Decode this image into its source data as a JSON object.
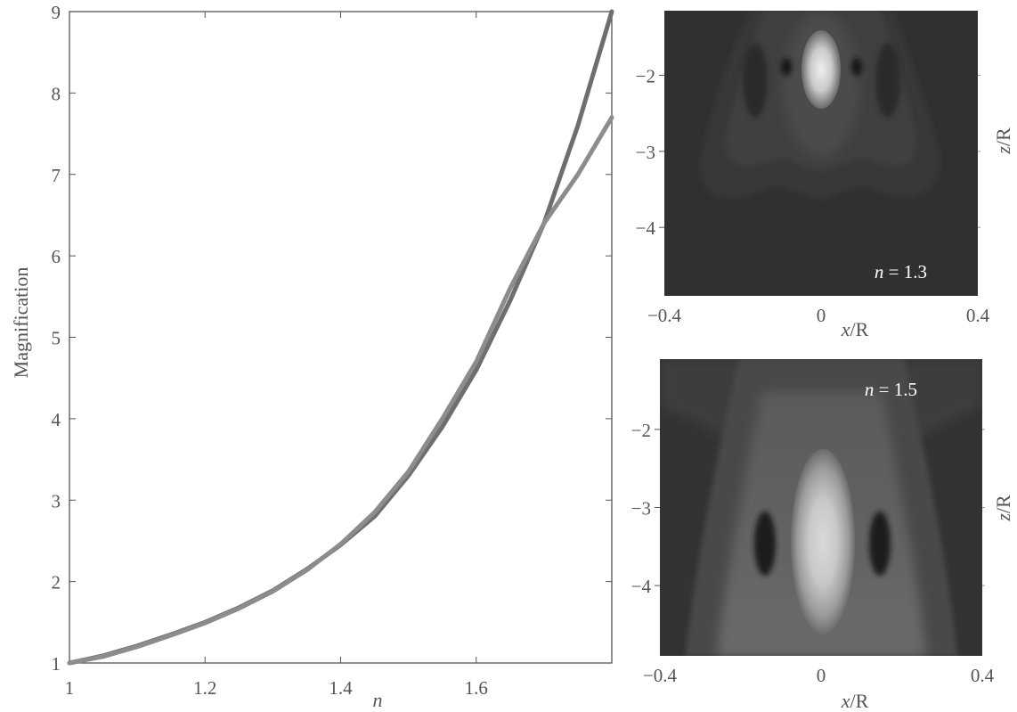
{
  "chart_data": [
    {
      "type": "line",
      "xlabel": "n",
      "ylabel": "Magnification",
      "xlim": [
        1,
        1.8
      ],
      "ylim": [
        1,
        9
      ],
      "x_ticks": [
        1,
        1.2,
        1.4,
        1.6
      ],
      "x_tick_labels": [
        "1",
        "1.2",
        "1.4",
        "1.6"
      ],
      "y_ticks": [
        1,
        2,
        3,
        4,
        5,
        6,
        7,
        8,
        9
      ],
      "y_tick_labels": [
        "1",
        "2",
        "3",
        "4",
        "5",
        "6",
        "7",
        "8",
        "9"
      ],
      "grid": false,
      "series": [
        {
          "color": "#6e6e6e",
          "x": [
            1.0,
            1.05,
            1.1,
            1.15,
            1.2,
            1.25,
            1.3,
            1.35,
            1.4,
            1.45,
            1.5,
            1.55,
            1.6,
            1.65,
            1.7,
            1.75,
            1.8
          ],
          "y": [
            1.0,
            1.09,
            1.21,
            1.35,
            1.5,
            1.68,
            1.89,
            2.15,
            2.45,
            2.8,
            3.3,
            3.9,
            4.6,
            5.45,
            6.4,
            7.6,
            9.0
          ]
        },
        {
          "color": "#8c8c8c",
          "x": [
            1.0,
            1.05,
            1.1,
            1.15,
            1.2,
            1.25,
            1.3,
            1.35,
            1.4,
            1.45,
            1.5,
            1.55,
            1.6,
            1.65,
            1.7,
            1.75,
            1.8
          ],
          "y": [
            1.0,
            1.08,
            1.2,
            1.34,
            1.49,
            1.67,
            1.88,
            2.14,
            2.46,
            2.85,
            3.35,
            4.0,
            4.7,
            5.6,
            6.4,
            7.0,
            7.7
          ]
        }
      ]
    },
    {
      "type": "heatmap",
      "label": "n = 1.3",
      "label_var": "n",
      "label_rest": " = 1.3",
      "xlabel_var": "x",
      "xlabel_rest": "/R",
      "ylabel_var": "z",
      "ylabel_rest": "/R",
      "xlim": [
        -0.4,
        0.4
      ],
      "x_tick_labels": [
        "−0.4",
        "0",
        "0.4"
      ],
      "ylim": [
        -4.9,
        -1.15
      ],
      "y_ticks": [
        -2,
        -3,
        -4
      ],
      "y_tick_labels": [
        "−2",
        "−3",
        "−4"
      ],
      "colormap": "gray"
    },
    {
      "type": "heatmap",
      "label": "n = 1.5",
      "label_var": "n",
      "label_rest": " = 1.5",
      "xlabel_var": "x",
      "xlabel_rest": "/R",
      "ylabel_var": "z",
      "ylabel_rest": "/R",
      "xlim": [
        -0.4,
        0.4
      ],
      "x_tick_labels": [
        "−0.4",
        "0",
        "0.4"
      ],
      "ylim": [
        -4.9,
        -1.1
      ],
      "y_ticks": [
        -2,
        -3,
        -4
      ],
      "y_tick_labels": [
        "−2",
        "−3",
        "−4"
      ],
      "colormap": "gray"
    }
  ]
}
